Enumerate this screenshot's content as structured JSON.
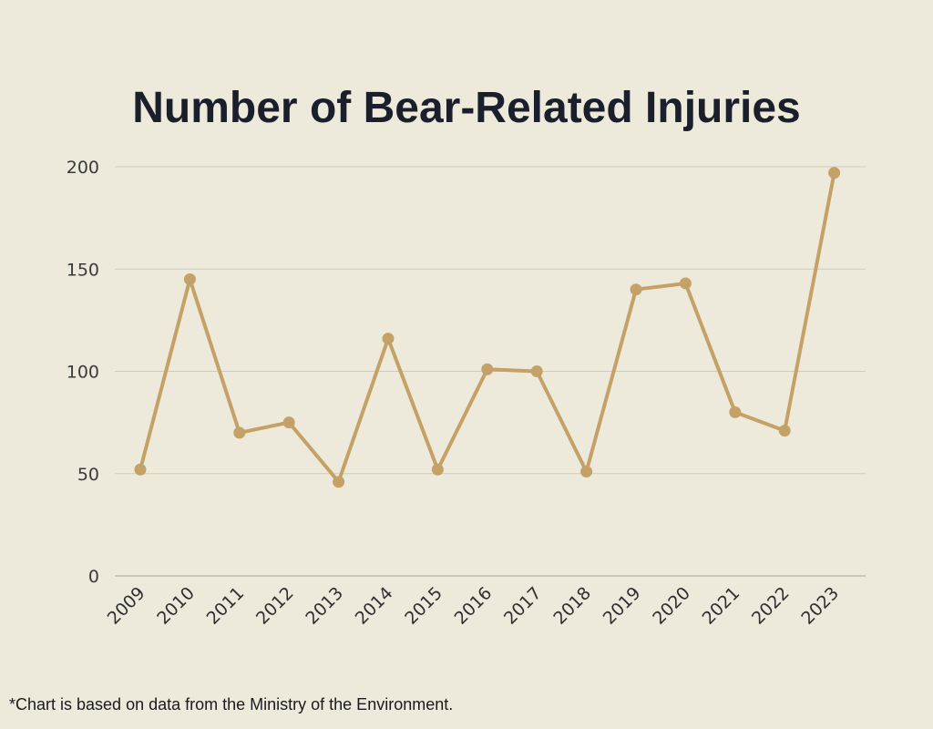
{
  "chart_data": {
    "type": "line",
    "title": "Number of Bear-Related Injuries",
    "xlabel": "",
    "ylabel": "",
    "categories": [
      "2009",
      "2010",
      "2011",
      "2012",
      "2013",
      "2014",
      "2015",
      "2016",
      "2017",
      "2018",
      "2019",
      "2020",
      "2021",
      "2022",
      "2023"
    ],
    "values": [
      52,
      145,
      70,
      75,
      46,
      116,
      52,
      101,
      100,
      51,
      140,
      143,
      80,
      71,
      197
    ],
    "ylim": [
      0,
      200
    ],
    "yticks": [
      0,
      50,
      100,
      150,
      200
    ],
    "grid": true,
    "legend": "none",
    "line_color": "#c4a267",
    "marker_color": "#c4a267"
  },
  "footnote": "*Chart is based on data from the Ministry of the Environment."
}
